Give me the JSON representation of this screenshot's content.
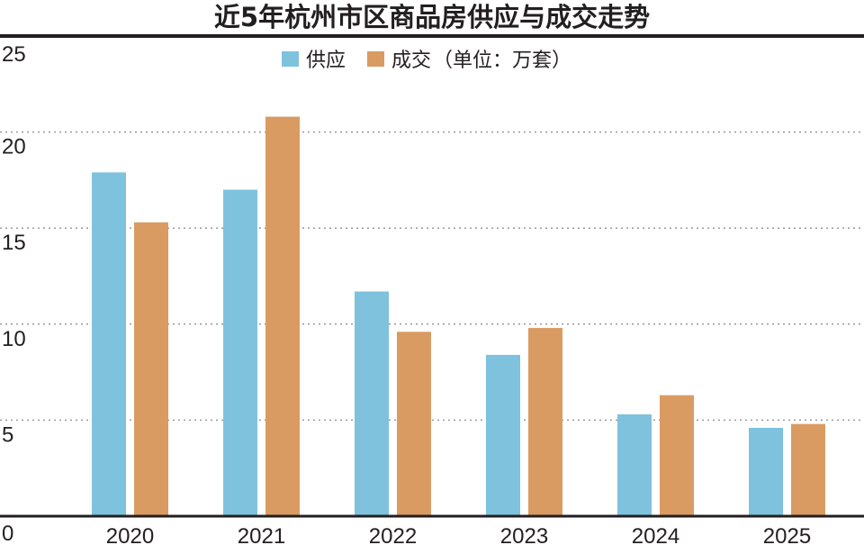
{
  "chart_data": {
    "type": "bar",
    "title": "近5年杭州市区商品房供应与成交走势",
    "unit_note": "（单位：万套）",
    "categories": [
      "2020",
      "2021",
      "2022",
      "2023",
      "2024",
      "2025"
    ],
    "series": [
      {
        "name": "供应",
        "color": "#7fc2dd",
        "values": [
          17.9,
          17.0,
          11.7,
          8.4,
          5.3,
          4.6
        ]
      },
      {
        "name": "成交",
        "color": "#d99b62",
        "values": [
          15.3,
          20.8,
          9.6,
          9.8,
          6.3,
          4.8
        ]
      }
    ],
    "ylim": [
      0,
      25
    ],
    "yticks": [
      0,
      5,
      10,
      15,
      20,
      25
    ],
    "grid": true,
    "legend_position": "top-center"
  }
}
